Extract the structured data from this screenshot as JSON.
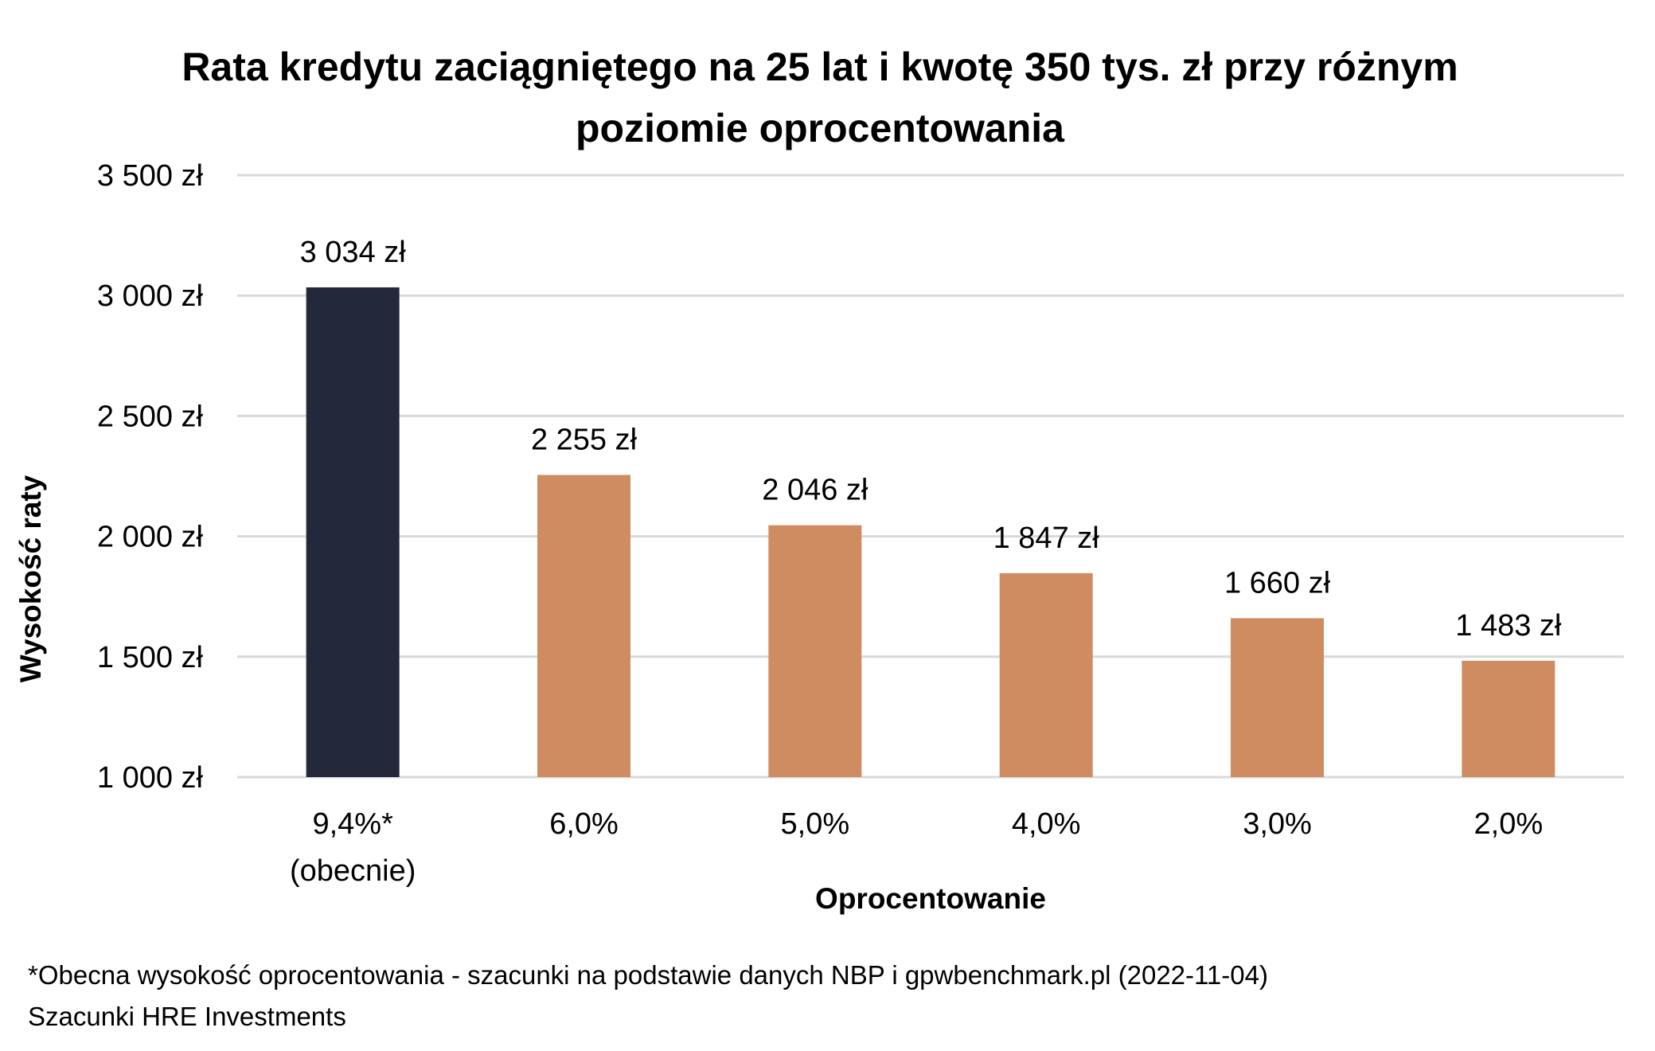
{
  "chart_data": {
    "type": "bar",
    "title_lines": [
      "Rata kredytu zaciągniętego na 25 lat i kwotę 350 tys. zł przy różnym",
      "poziomie oprocentowania"
    ],
    "xlabel": "Oprocentowanie",
    "ylabel": "Wysokość raty",
    "categories": [
      [
        "9,4%*",
        "(obecnie)"
      ],
      [
        "6,0%"
      ],
      [
        "5,0%"
      ],
      [
        "4,0%"
      ],
      [
        "3,0%"
      ],
      [
        "2,0%"
      ]
    ],
    "values": [
      3034,
      2255,
      2046,
      1847,
      1660,
      1483
    ],
    "data_labels": [
      "3 034 zł",
      "2 255 zł",
      "2 046 zł",
      "1 847 zł",
      "1 660 zł",
      "1 483 zł"
    ],
    "bar_colors": [
      "#23283a",
      "#d08c61",
      "#d08c61",
      "#d08c61",
      "#d08c61",
      "#d08c61"
    ],
    "ylim": [
      1000,
      3500
    ],
    "yticks": [
      1000,
      1500,
      2000,
      2500,
      3000,
      3500
    ],
    "ytick_labels": [
      "1 000 zł",
      "1 500 zł",
      "2 000 zł",
      "2 500 zł",
      "3 000 zł",
      "3 500 zł"
    ],
    "grid": true,
    "gridline_color": "#d9d9d9"
  },
  "footnotes": [
    "*Obecna wysokość oprocentowania - szacunki na podstawie danych NBP i gpwbenchmark.pl  (2022-11-04)",
    "Szacunki HRE Investments"
  ]
}
